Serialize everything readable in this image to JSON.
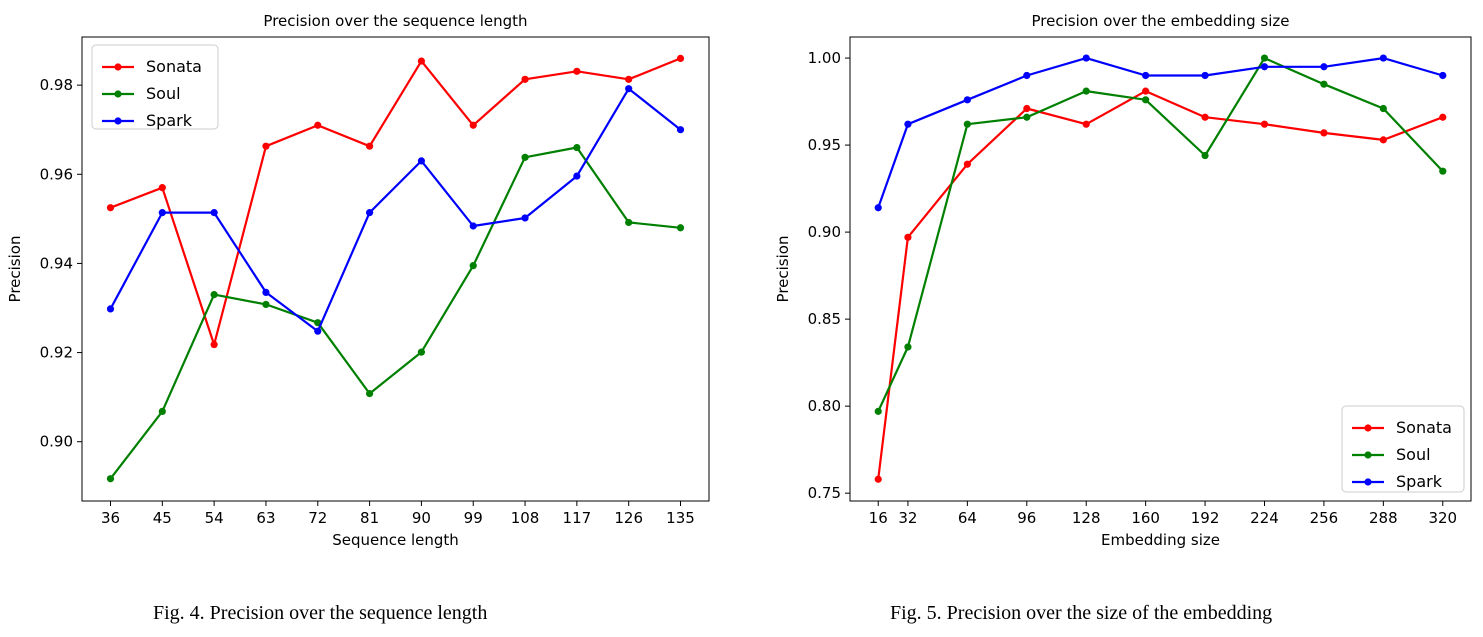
{
  "chart_data": [
    {
      "type": "line",
      "title": "Precision over the sequence length",
      "xlabel": "Sequence length",
      "ylabel": "Precision",
      "x": [
        36,
        45,
        54,
        63,
        72,
        81,
        90,
        99,
        108,
        117,
        126,
        135
      ],
      "xticks": [
        36,
        45,
        54,
        63,
        72,
        81,
        90,
        99,
        108,
        117,
        126,
        135
      ],
      "xlim": [
        31.05,
        139.95
      ],
      "yticks": [
        0.9,
        0.92,
        0.94,
        0.96,
        0.98
      ],
      "ytick_labels": [
        "0.90",
        "0.92",
        "0.94",
        "0.96",
        "0.98"
      ],
      "ylim": [
        0.8867,
        0.9908
      ],
      "legend": "upper-left",
      "grid": false,
      "series": [
        {
          "name": "Sonata",
          "color": "#ff0000",
          "values": [
            0.9525,
            0.957,
            0.9218,
            0.9663,
            0.971,
            0.9663,
            0.9854,
            0.971,
            0.9813,
            0.9831,
            0.9813,
            0.986
          ]
        },
        {
          "name": "Soul",
          "color": "#008000",
          "values": [
            0.8917,
            0.9068,
            0.933,
            0.9308,
            0.9267,
            0.9108,
            0.9201,
            0.9395,
            0.9638,
            0.966,
            0.9492,
            0.948
          ]
        },
        {
          "name": "Spark",
          "color": "#0000ff",
          "values": [
            0.9298,
            0.9514,
            0.9514,
            0.9335,
            0.9248,
            0.9514,
            0.963,
            0.9484,
            0.9502,
            0.9596,
            0.9792,
            0.97
          ]
        }
      ],
      "caption": "Fig. 4.  Precision over the sequence length"
    },
    {
      "type": "line",
      "title": "Precision over the embedding size",
      "xlabel": "Embedding size",
      "ylabel": "Precision",
      "x": [
        16,
        32,
        64,
        96,
        128,
        160,
        192,
        224,
        256,
        288,
        320
      ],
      "xticks": [
        16,
        32,
        64,
        96,
        128,
        160,
        192,
        224,
        256,
        288,
        320
      ],
      "xlim": [
        0.8,
        335.2
      ],
      "yticks": [
        0.75,
        0.8,
        0.85,
        0.9,
        0.95,
        1.0
      ],
      "ytick_labels": [
        "0.75",
        "0.80",
        "0.85",
        "0.90",
        "0.95",
        "1.00"
      ],
      "ylim": [
        0.7455,
        1.0121
      ],
      "legend": "lower-right",
      "grid": false,
      "series": [
        {
          "name": "Sonata",
          "color": "#ff0000",
          "values": [
            0.758,
            0.897,
            0.939,
            0.971,
            0.962,
            0.981,
            0.966,
            0.962,
            0.957,
            0.953,
            0.966
          ]
        },
        {
          "name": "Soul",
          "color": "#008000",
          "values": [
            0.797,
            0.834,
            0.962,
            0.966,
            0.981,
            0.976,
            0.944,
            1.0,
            0.985,
            0.971,
            0.935
          ]
        },
        {
          "name": "Spark",
          "color": "#0000ff",
          "values": [
            0.914,
            0.962,
            0.976,
            0.99,
            1.0,
            0.99,
            0.99,
            0.995,
            0.995,
            1.0,
            0.99
          ]
        }
      ],
      "caption": "Fig. 5.  Precision over the size of the embedding"
    }
  ]
}
